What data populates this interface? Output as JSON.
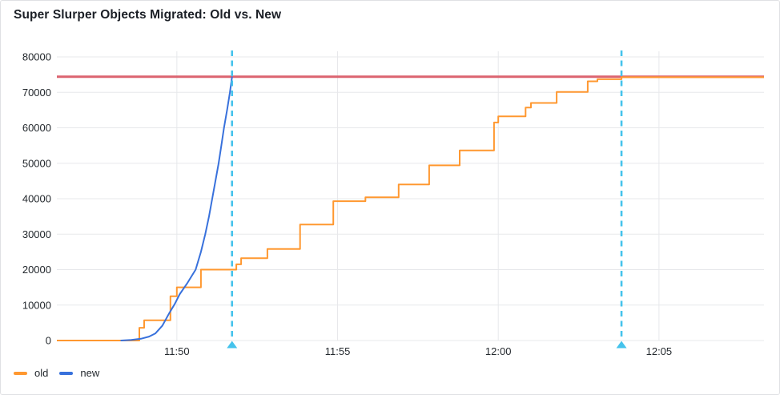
{
  "panel": {
    "title": "Super Slurper Objects Migrated: Old vs. New"
  },
  "colors": {
    "old": "#FF9830",
    "new": "#3871DC",
    "threshold": "#DC6470",
    "annotation": "#45C3EC",
    "grid": "#E7E8EB",
    "text": "#24292E",
    "background": "#FFFFFF",
    "panel_border": "#E0E1E4"
  },
  "legend": {
    "items": [
      {
        "id": "old",
        "label": "old",
        "color": "#FF9830"
      },
      {
        "id": "new",
        "label": "new",
        "color": "#3871DC"
      }
    ]
  },
  "chart_data": {
    "type": "line",
    "title": "Super Slurper Objects Migrated: Old vs. New",
    "xlabel": "",
    "ylabel": "",
    "grid": true,
    "legend_position": "bottom-left",
    "x_axis": {
      "start": "11:46:16",
      "end": "12:08:16",
      "ticks": [
        {
          "t": "11:50:00",
          "label": "11:50"
        },
        {
          "t": "11:55:00",
          "label": "11:55"
        },
        {
          "t": "12:00:00",
          "label": "12:00"
        },
        {
          "t": "12:05:00",
          "label": "12:05"
        }
      ]
    },
    "y_axis": {
      "min": 0,
      "max": 80000,
      "ticks": [
        0,
        10000,
        20000,
        30000,
        40000,
        50000,
        60000,
        70000,
        80000
      ]
    },
    "threshold_line": {
      "value": 74400,
      "color": "#DC6470"
    },
    "annotations": [
      {
        "time": "11:51:43",
        "color": "#45C3EC",
        "style": "dashed"
      },
      {
        "time": "12:03:50",
        "color": "#45C3EC",
        "style": "dashed"
      }
    ],
    "series": [
      {
        "name": "old",
        "color": "#FF9830",
        "mode": "step-after",
        "points": [
          [
            "11:46:16",
            0
          ],
          [
            "11:48:50",
            3600
          ],
          [
            "11:48:59",
            5700
          ],
          [
            "11:49:48",
            12500
          ],
          [
            "11:50:00",
            15000
          ],
          [
            "11:50:45",
            20000
          ],
          [
            "11:51:51",
            21500
          ],
          [
            "11:52:00",
            23200
          ],
          [
            "11:52:49",
            25800
          ],
          [
            "11:53:50",
            32700
          ],
          [
            "11:54:52",
            39300
          ],
          [
            "11:55:52",
            40400
          ],
          [
            "11:56:54",
            44000
          ],
          [
            "11:57:51",
            49400
          ],
          [
            "11:58:48",
            53600
          ],
          [
            "11:59:52",
            61500
          ],
          [
            "12:00:00",
            63200
          ],
          [
            "12:00:51",
            65700
          ],
          [
            "12:01:01",
            67000
          ],
          [
            "12:01:49",
            70100
          ],
          [
            "12:02:47",
            73100
          ],
          [
            "12:03:05",
            73700
          ],
          [
            "12:03:50",
            74250
          ],
          [
            "12:08:16",
            74250
          ]
        ]
      },
      {
        "name": "new",
        "color": "#3871DC",
        "mode": "linear",
        "points": [
          [
            "11:48:16",
            0
          ],
          [
            "11:48:35",
            150
          ],
          [
            "11:48:53",
            500
          ],
          [
            "11:49:08",
            1100
          ],
          [
            "11:49:20",
            2000
          ],
          [
            "11:49:33",
            4200
          ],
          [
            "11:49:45",
            7500
          ],
          [
            "11:49:56",
            10300
          ],
          [
            "11:50:05",
            13000
          ],
          [
            "11:50:20",
            16300
          ],
          [
            "11:50:35",
            20000
          ],
          [
            "11:50:45",
            25000
          ],
          [
            "11:50:53",
            30000
          ],
          [
            "11:51:00",
            35000
          ],
          [
            "11:51:06",
            40000
          ],
          [
            "11:51:12",
            45000
          ],
          [
            "11:51:18",
            50000
          ],
          [
            "11:51:23",
            55000
          ],
          [
            "11:51:28",
            60000
          ],
          [
            "11:51:34",
            65200
          ],
          [
            "11:51:39",
            70000
          ],
          [
            "11:51:43",
            74250
          ]
        ]
      }
    ]
  }
}
